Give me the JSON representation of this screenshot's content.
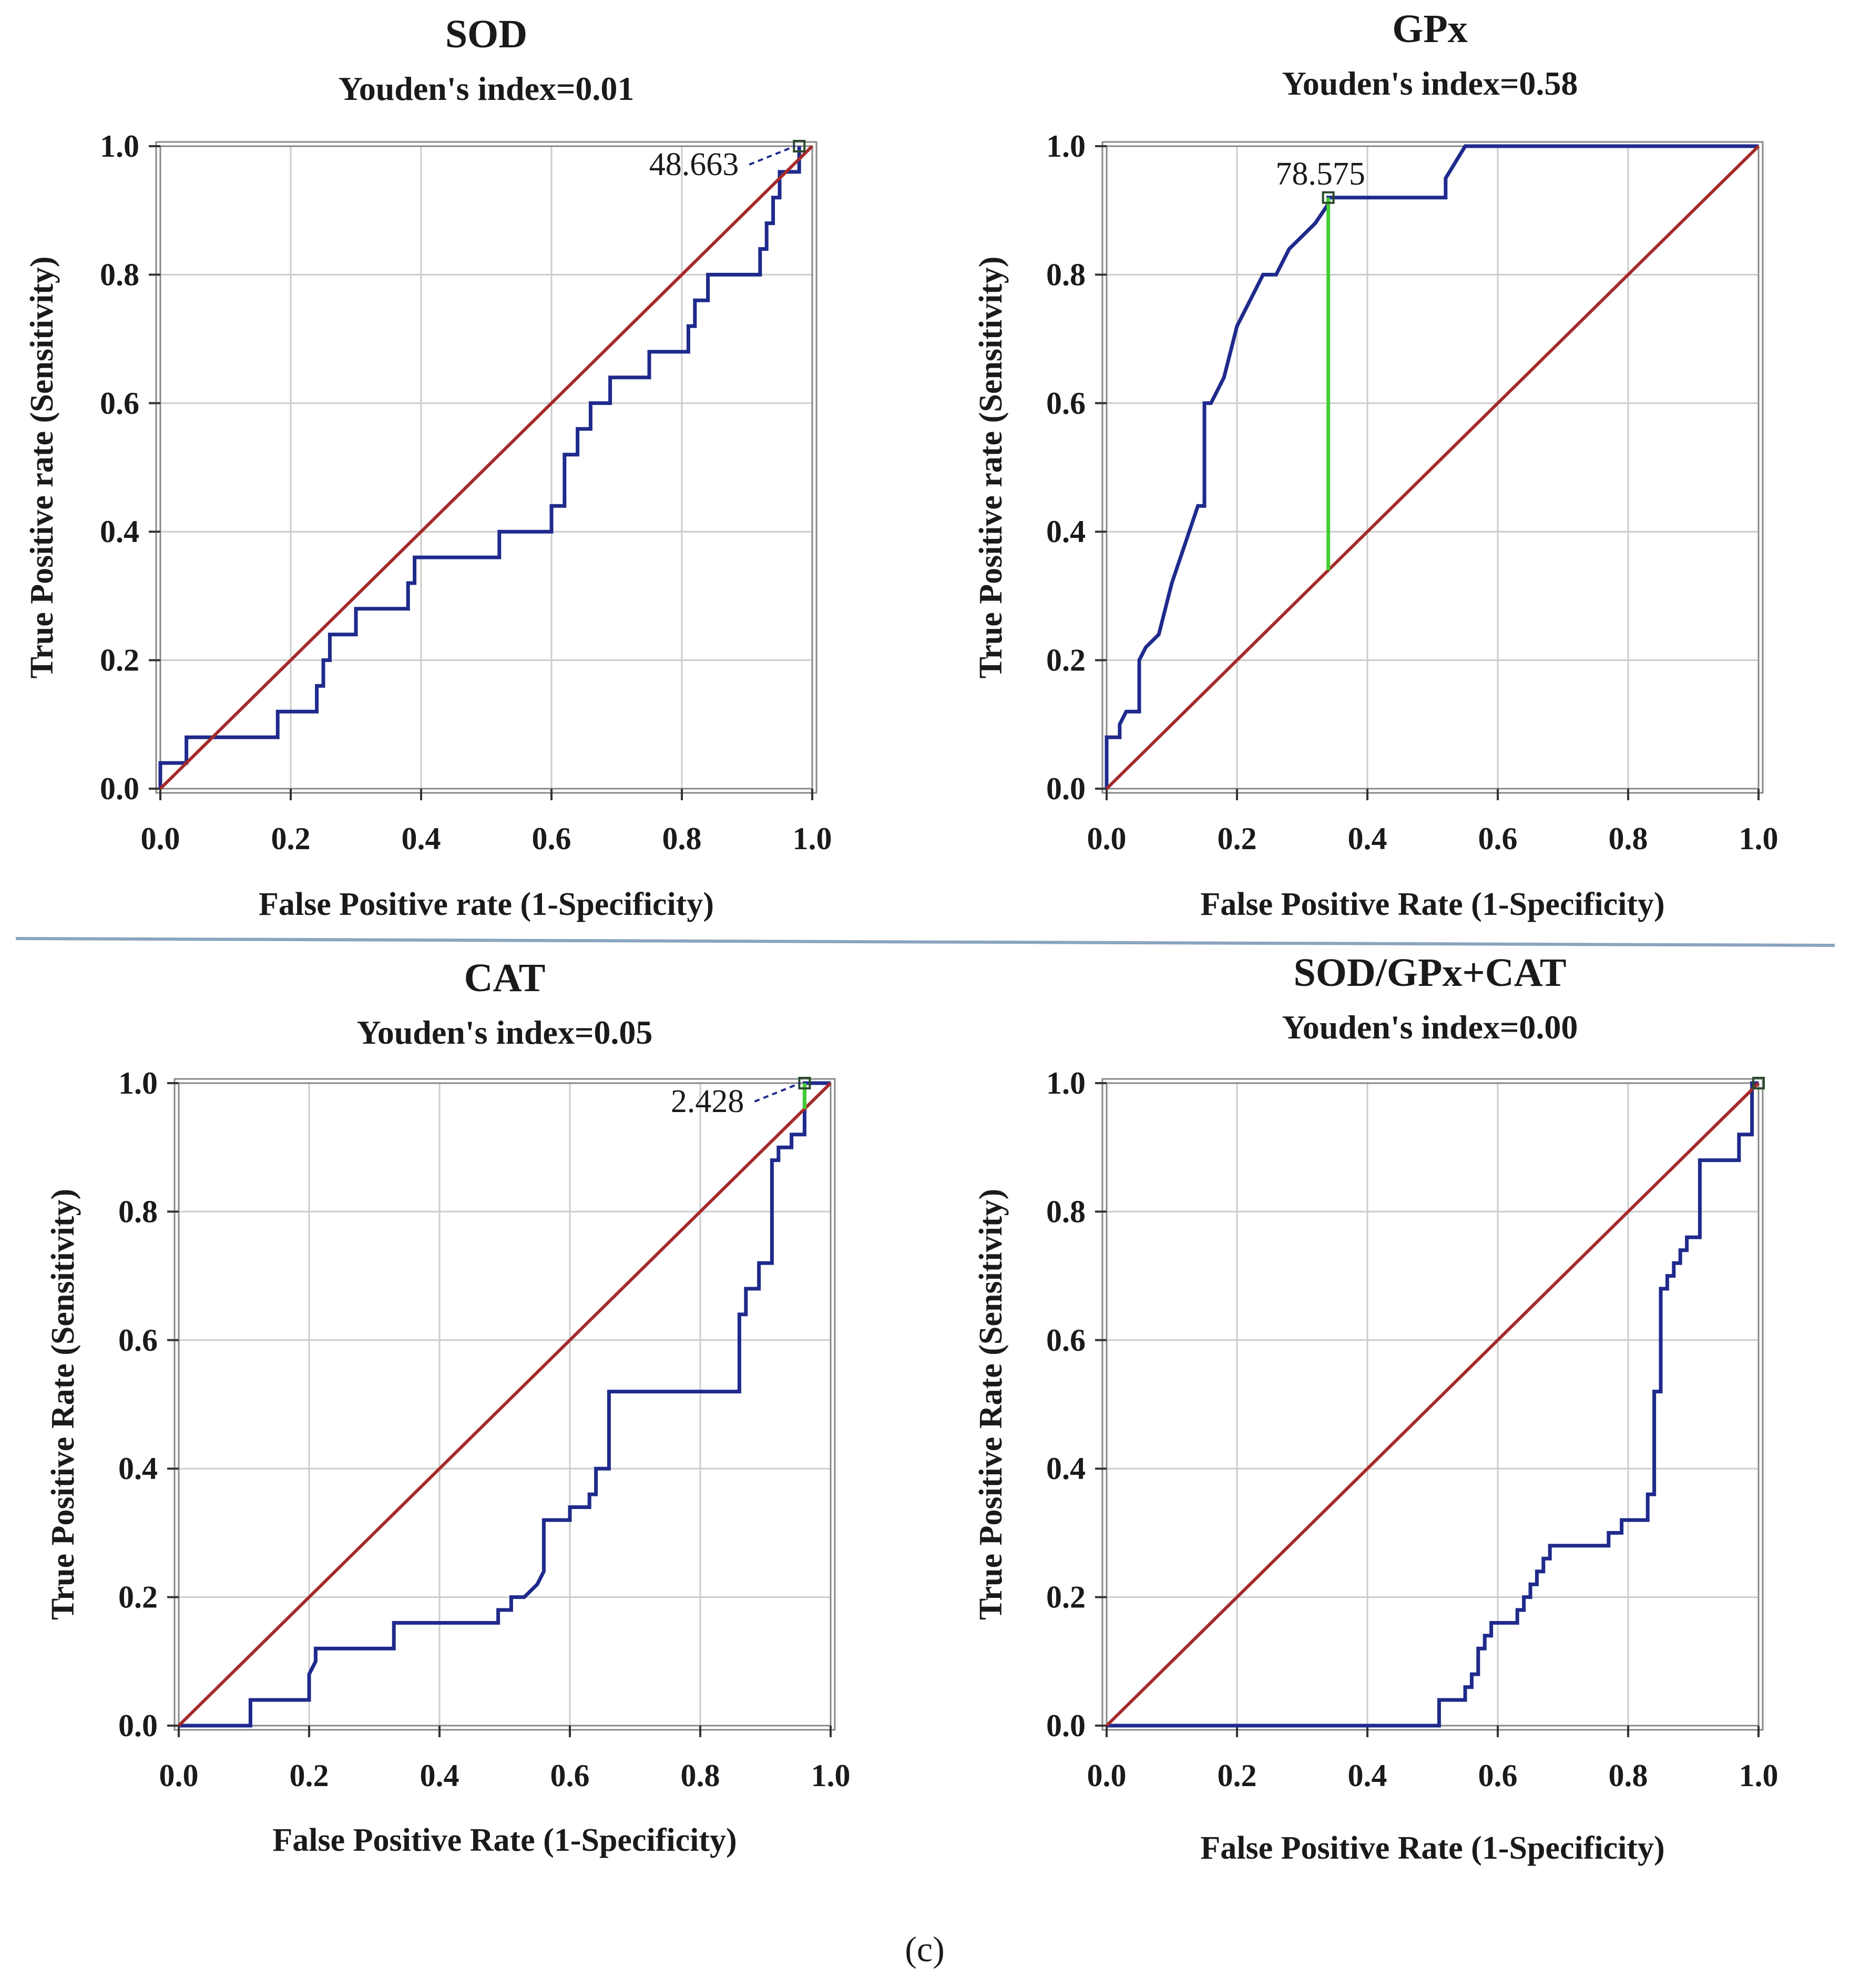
{
  "figure_label": "(c)",
  "colors": {
    "roc_line": "#1f2a8c",
    "reference_line": "#a52a2a",
    "youden_line": "#44cc33",
    "grid": "#cccccc",
    "frame": "#888888",
    "separator": "#8aa4bd"
  },
  "chart_data": [
    {
      "type": "line",
      "title": "SOD",
      "subtitle": "Youden's index=0.01",
      "xlabel": "False Positive rate (1-Specificity)",
      "ylabel": "True Positive rate (Sensitivity)",
      "xlim": [
        0,
        1
      ],
      "ylim": [
        0,
        1
      ],
      "xticks": [
        "0.0",
        "0.2",
        "0.4",
        "0.6",
        "0.8",
        "1.0"
      ],
      "yticks": [
        "0.0",
        "0.2",
        "0.4",
        "0.6",
        "0.8",
        "1.0"
      ],
      "grid": true,
      "cutoff": {
        "label": "48.663",
        "x": 0.98,
        "y": 1.0
      },
      "youden_segment": null,
      "series": [
        {
          "role": "roc",
          "x": [
            0.0,
            0.0,
            0.04,
            0.04,
            0.1,
            0.1,
            0.18,
            0.18,
            0.24,
            0.24,
            0.25,
            0.25,
            0.26,
            0.26,
            0.27,
            0.27,
            0.3,
            0.3,
            0.38,
            0.38,
            0.39,
            0.39,
            0.52,
            0.52,
            0.6,
            0.6,
            0.62,
            0.62,
            0.64,
            0.64,
            0.66,
            0.66,
            0.69,
            0.69,
            0.75,
            0.75,
            0.78,
            0.78,
            0.81,
            0.81,
            0.82,
            0.82,
            0.84,
            0.84,
            0.88,
            0.88,
            0.92,
            0.92,
            0.93,
            0.93,
            0.94,
            0.94,
            0.95,
            0.95,
            0.96,
            0.96,
            0.98,
            0.98
          ],
          "y": [
            0.0,
            0.04,
            0.04,
            0.08,
            0.08,
            0.08,
            0.08,
            0.12,
            0.12,
            0.16,
            0.16,
            0.2,
            0.2,
            0.24,
            0.24,
            0.24,
            0.24,
            0.28,
            0.28,
            0.32,
            0.32,
            0.36,
            0.36,
            0.4,
            0.4,
            0.44,
            0.44,
            0.52,
            0.52,
            0.56,
            0.56,
            0.6,
            0.6,
            0.64,
            0.64,
            0.68,
            0.68,
            0.68,
            0.68,
            0.72,
            0.72,
            0.76,
            0.76,
            0.8,
            0.8,
            0.8,
            0.8,
            0.84,
            0.84,
            0.88,
            0.88,
            0.92,
            0.92,
            0.96,
            0.96,
            0.96,
            0.96,
            1.0
          ]
        },
        {
          "role": "reference",
          "x": [
            0,
            1
          ],
          "y": [
            0,
            1
          ]
        }
      ]
    },
    {
      "type": "line",
      "title": "GPx",
      "subtitle": "Youden's index=0.58",
      "xlabel": "False Positive Rate (1-Specificity)",
      "ylabel": "True Positive rate (Sensitivity)",
      "xlim": [
        0,
        1
      ],
      "ylim": [
        0,
        1
      ],
      "xticks": [
        "0.0",
        "0.2",
        "0.4",
        "0.6",
        "0.8",
        "1.0"
      ],
      "yticks": [
        "0.0",
        "0.2",
        "0.4",
        "0.6",
        "0.8",
        "1.0"
      ],
      "grid": true,
      "cutoff": {
        "label": "78.575",
        "x": 0.34,
        "y": 0.92
      },
      "youden_segment": {
        "x": 0.34,
        "y1": 0.34,
        "y2": 0.92
      },
      "series": [
        {
          "role": "roc",
          "x": [
            0.0,
            0.0,
            0.02,
            0.02,
            0.03,
            0.04,
            0.05,
            0.05,
            0.06,
            0.07,
            0.08,
            0.09,
            0.1,
            0.11,
            0.12,
            0.13,
            0.14,
            0.15,
            0.15,
            0.16,
            0.17,
            0.18,
            0.19,
            0.2,
            0.21,
            0.22,
            0.23,
            0.24,
            0.26,
            0.28,
            0.3,
            0.32,
            0.34,
            0.34,
            0.36,
            0.52,
            0.52,
            0.55,
            1.0
          ],
          "y": [
            0.0,
            0.08,
            0.08,
            0.1,
            0.12,
            0.12,
            0.12,
            0.2,
            0.22,
            0.23,
            0.24,
            0.28,
            0.32,
            0.35,
            0.38,
            0.41,
            0.44,
            0.44,
            0.6,
            0.6,
            0.62,
            0.64,
            0.68,
            0.72,
            0.74,
            0.76,
            0.78,
            0.8,
            0.8,
            0.84,
            0.86,
            0.88,
            0.91,
            0.92,
            0.92,
            0.92,
            0.95,
            1.0,
            1.0
          ]
        },
        {
          "role": "reference",
          "x": [
            0,
            1
          ],
          "y": [
            0,
            1
          ]
        }
      ]
    },
    {
      "type": "line",
      "title": "CAT",
      "subtitle": "Youden's index=0.05",
      "xlabel": "False Positive Rate (1-Specificity)",
      "ylabel": "True Positive Rate (Sensitivity)",
      "xlim": [
        0,
        1
      ],
      "ylim": [
        0,
        1
      ],
      "xticks": [
        "0.0",
        "0.2",
        "0.4",
        "0.6",
        "0.8",
        "1.0"
      ],
      "yticks": [
        "0.0",
        "0.2",
        "0.4",
        "0.6",
        "0.8",
        "1.0"
      ],
      "grid": true,
      "cutoff": {
        "label": "2.428",
        "x": 0.96,
        "y": 1.0
      },
      "youden_segment": {
        "x": 0.96,
        "y1": 0.96,
        "y2": 1.0
      },
      "series": [
        {
          "role": "roc",
          "x": [
            0.0,
            0.11,
            0.11,
            0.2,
            0.2,
            0.21,
            0.21,
            0.33,
            0.33,
            0.49,
            0.49,
            0.51,
            0.51,
            0.53,
            0.55,
            0.56,
            0.56,
            0.6,
            0.6,
            0.63,
            0.63,
            0.64,
            0.64,
            0.66,
            0.66,
            0.86,
            0.86,
            0.87,
            0.87,
            0.89,
            0.89,
            0.91,
            0.91,
            0.92,
            0.92,
            0.94,
            0.94,
            0.96,
            0.96,
            1.0
          ],
          "y": [
            0.0,
            0.0,
            0.04,
            0.04,
            0.08,
            0.1,
            0.12,
            0.12,
            0.16,
            0.16,
            0.18,
            0.18,
            0.2,
            0.2,
            0.22,
            0.24,
            0.32,
            0.32,
            0.34,
            0.34,
            0.36,
            0.36,
            0.4,
            0.4,
            0.52,
            0.52,
            0.64,
            0.64,
            0.68,
            0.68,
            0.72,
            0.72,
            0.88,
            0.88,
            0.9,
            0.9,
            0.92,
            0.92,
            1.0,
            1.0
          ]
        },
        {
          "role": "reference",
          "x": [
            0,
            1
          ],
          "y": [
            0,
            1
          ]
        }
      ]
    },
    {
      "type": "line",
      "title": "SOD/GPx+CAT",
      "subtitle": "Youden's index=0.00",
      "xlabel": "False Positive Rate (1-Specificity)",
      "ylabel": "True Positive Rate (Sensitivity)",
      "xlim": [
        0,
        1
      ],
      "ylim": [
        0,
        1
      ],
      "xticks": [
        "0.0",
        "0.2",
        "0.4",
        "0.6",
        "0.8",
        "1.0"
      ],
      "yticks": [
        "0.0",
        "0.2",
        "0.4",
        "0.6",
        "0.8",
        "1.0"
      ],
      "grid": true,
      "cutoff": {
        "label": "",
        "x": 1.0,
        "y": 1.0
      },
      "youden_segment": null,
      "series": [
        {
          "role": "roc",
          "x": [
            0.0,
            0.51,
            0.51,
            0.55,
            0.55,
            0.56,
            0.56,
            0.57,
            0.57,
            0.58,
            0.58,
            0.59,
            0.59,
            0.63,
            0.63,
            0.64,
            0.64,
            0.65,
            0.65,
            0.66,
            0.66,
            0.67,
            0.67,
            0.68,
            0.68,
            0.69,
            0.69,
            0.77,
            0.77,
            0.79,
            0.79,
            0.83,
            0.83,
            0.84,
            0.84,
            0.85,
            0.85,
            0.86,
            0.86,
            0.87,
            0.87,
            0.88,
            0.88,
            0.89,
            0.89,
            0.91,
            0.91,
            0.97,
            0.97,
            0.99,
            0.99,
            1.0
          ],
          "y": [
            0.0,
            0.0,
            0.04,
            0.04,
            0.06,
            0.06,
            0.08,
            0.08,
            0.12,
            0.12,
            0.14,
            0.14,
            0.16,
            0.16,
            0.18,
            0.18,
            0.2,
            0.2,
            0.22,
            0.22,
            0.24,
            0.24,
            0.26,
            0.26,
            0.28,
            0.28,
            0.28,
            0.28,
            0.3,
            0.3,
            0.32,
            0.32,
            0.36,
            0.36,
            0.52,
            0.52,
            0.68,
            0.68,
            0.7,
            0.7,
            0.72,
            0.72,
            0.74,
            0.74,
            0.76,
            0.76,
            0.88,
            0.88,
            0.92,
            0.92,
            1.0,
            1.0
          ]
        },
        {
          "role": "reference",
          "x": [
            0,
            1
          ],
          "y": [
            0,
            1
          ]
        }
      ]
    }
  ]
}
